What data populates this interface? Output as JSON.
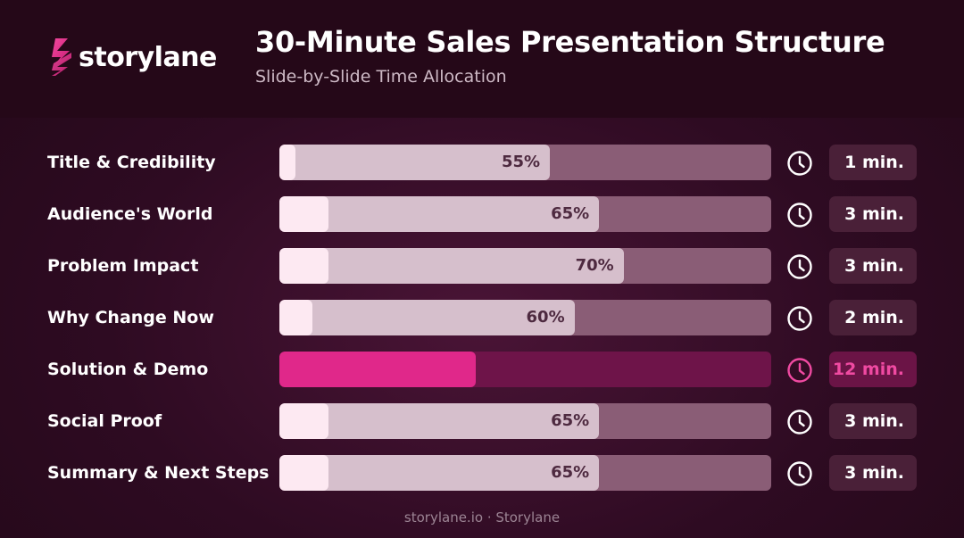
{
  "brand": {
    "name": "storylane",
    "accent_color": "#e0288a"
  },
  "header": {
    "title": "30-Minute Sales Presentation Structure",
    "subtitle": "Slide-by-Slide Time Allocation"
  },
  "chart_data": {
    "type": "bar",
    "title": "30-Minute Sales Presentation Structure",
    "subtitle": "Slide-by-Slide Time Allocation",
    "total_minutes": 30,
    "categories": [
      "Title & Credibility",
      "Audience's World",
      "Problem Impact",
      "Why Change Now",
      "Solution & Demo",
      "Social Proof",
      "Summary & Next Steps"
    ],
    "series": [
      {
        "name": "",
        "values": [
          55,
          65,
          70,
          60,
          null,
          65,
          65
        ],
        "unit": "%"
      },
      {
        "name": "",
        "values": [
          1,
          3,
          3,
          2,
          12,
          3,
          3
        ],
        "unit": "min."
      }
    ],
    "percent_labels": [
      "55%",
      "65%",
      "70%",
      "60%",
      "",
      "65%",
      "65%"
    ],
    "time_labels": [
      "1 min.",
      "3 min.",
      "3 min.",
      "2 min.",
      "12 min.",
      "3 min.",
      "3 min."
    ],
    "highlight_index": 4,
    "icon": "clock-icon",
    "colors": {
      "track": "#8a5d76",
      "percent_fill": "#d6bfcc",
      "time_fill": "#fde9f2",
      "highlight_track": "#6e1449",
      "highlight_fill": "#e0288a",
      "highlight_text": "#f04aa2"
    }
  },
  "footer": {
    "text": "storylane.io · Storylane"
  }
}
